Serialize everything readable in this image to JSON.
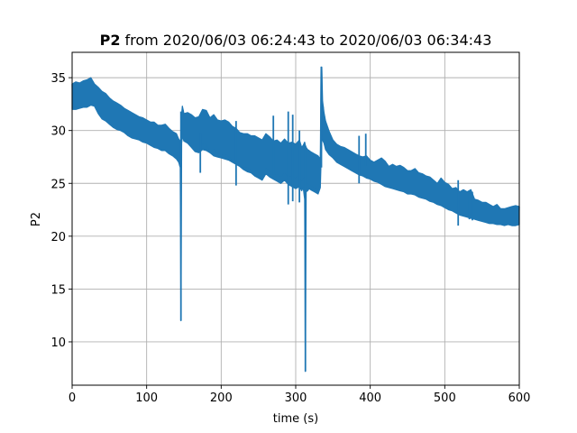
{
  "chart_data": {
    "type": "line",
    "title_bold": "P2",
    "title_rest": "from 2020/06/03 06:24:43 to 2020/06/03 06:34:43",
    "xlabel": "time (s)",
    "ylabel": "P2",
    "xlim": [
      0,
      600
    ],
    "ylim": [
      5.9,
      37.4
    ],
    "grid": true,
    "x_ticks": [
      "0",
      "100",
      "200",
      "300",
      "400",
      "500",
      "600"
    ],
    "y_ticks": [
      "10",
      "15",
      "20",
      "25",
      "30",
      "35"
    ],
    "series": [
      {
        "color": "#1f77b4",
        "x": [
          0,
          5,
          10,
          15,
          20,
          25,
          30,
          35,
          40,
          45,
          50,
          55,
          60,
          65,
          70,
          75,
          80,
          85,
          90,
          95,
          100,
          105,
          110,
          115,
          120,
          125,
          130,
          135,
          140,
          143,
          145,
          146,
          147,
          148,
          150,
          155,
          160,
          165,
          170,
          175,
          180,
          185,
          190,
          195,
          200,
          205,
          210,
          215,
          220,
          225,
          230,
          235,
          240,
          245,
          250,
          255,
          260,
          265,
          270,
          275,
          280,
          285,
          290,
          295,
          300,
          305,
          308,
          310,
          312,
          313,
          314,
          316,
          318,
          320,
          325,
          330,
          333,
          334,
          335,
          336,
          338,
          340,
          345,
          350,
          355,
          360,
          365,
          370,
          375,
          380,
          385,
          390,
          395,
          400,
          405,
          410,
          415,
          420,
          425,
          430,
          435,
          440,
          445,
          450,
          455,
          460,
          465,
          470,
          475,
          480,
          485,
          490,
          495,
          500,
          505,
          510,
          515,
          520,
          525,
          530,
          535,
          540,
          545,
          550,
          555,
          560,
          565,
          570,
          575,
          580,
          585,
          590,
          595,
          600
        ],
        "upper": [
          34.4,
          34.6,
          34.5,
          34.7,
          34.8,
          35.0,
          34.4,
          34.1,
          33.7,
          33.5,
          33.1,
          32.8,
          32.6,
          32.4,
          32.1,
          31.9,
          31.7,
          31.5,
          31.3,
          31.2,
          31.0,
          30.8,
          30.8,
          30.5,
          30.5,
          30.6,
          30.2,
          29.9,
          29.7,
          29.2,
          29.0,
          28.6,
          31.6,
          32.3,
          31.6,
          31.7,
          31.5,
          31.2,
          31.3,
          32.0,
          31.9,
          31.2,
          31.5,
          31.0,
          30.9,
          31.0,
          30.8,
          30.4,
          30.2,
          29.8,
          29.7,
          29.7,
          29.5,
          29.5,
          29.3,
          29.1,
          29.7,
          29.4,
          29.0,
          29.1,
          28.8,
          29.2,
          28.8,
          28.9,
          28.7,
          29.1,
          28.4,
          28.6,
          28.9,
          28.6,
          28.4,
          28.2,
          28.1,
          28.0,
          27.8,
          27.6,
          27.3,
          36.0,
          36.0,
          32.8,
          31.7,
          30.9,
          29.9,
          29.1,
          28.7,
          28.5,
          28.4,
          28.2,
          28.0,
          27.8,
          27.6,
          27.5,
          27.6,
          27.2,
          27.0,
          27.2,
          27.4,
          27.1,
          26.6,
          26.8,
          26.6,
          26.7,
          26.5,
          26.2,
          26.2,
          26.4,
          26.0,
          25.9,
          25.7,
          25.6,
          25.3,
          25.0,
          25.5,
          25.1,
          24.9,
          24.5,
          24.6,
          24.2,
          24.4,
          24.2,
          24.4,
          23.5,
          23.4,
          23.2,
          23.2,
          23.0,
          22.8,
          23.0,
          22.6,
          22.6,
          22.7,
          22.8,
          22.9,
          22.8
        ],
        "lower": [
          32.0,
          32.0,
          32.1,
          32.2,
          32.2,
          32.4,
          32.3,
          31.6,
          31.1,
          30.9,
          30.6,
          30.3,
          30.1,
          30.0,
          29.8,
          29.5,
          29.3,
          29.2,
          29.1,
          28.9,
          28.8,
          28.6,
          28.4,
          28.3,
          28.1,
          28.1,
          27.8,
          27.6,
          27.3,
          27.0,
          26.5,
          12.0,
          28.8,
          29.5,
          29.0,
          28.8,
          28.4,
          28.0,
          27.9,
          28.2,
          28.1,
          27.9,
          27.6,
          27.5,
          27.4,
          27.3,
          27.2,
          27.0,
          26.8,
          26.6,
          26.3,
          26.1,
          26.0,
          25.7,
          25.5,
          25.3,
          25.9,
          25.6,
          25.4,
          25.2,
          25.0,
          25.3,
          24.9,
          24.7,
          24.5,
          24.7,
          24.3,
          24.6,
          23.5,
          7.2,
          24.2,
          24.3,
          24.5,
          24.4,
          24.2,
          24.0,
          24.6,
          27.0,
          29.0,
          29.1,
          28.8,
          28.2,
          27.7,
          27.4,
          27.0,
          26.8,
          26.6,
          26.4,
          26.2,
          26.0,
          25.8,
          25.7,
          25.5,
          25.4,
          25.2,
          25.1,
          24.9,
          24.7,
          24.6,
          24.5,
          24.4,
          24.3,
          24.2,
          24.0,
          24.0,
          23.9,
          23.7,
          23.6,
          23.5,
          23.3,
          23.2,
          23.0,
          22.9,
          22.7,
          22.5,
          22.4,
          22.2,
          22.0,
          21.9,
          21.8,
          21.7,
          21.6,
          21.5,
          21.4,
          21.3,
          21.2,
          21.2,
          21.1,
          21.1,
          21.0,
          21.1,
          21.0,
          21.0,
          21.1
        ],
        "spikes": [
          {
            "x": 146,
            "y_min": 12.0,
            "y_max": 31.8
          },
          {
            "x": 313,
            "y_min": 7.2,
            "y_max": 28.5
          },
          {
            "x": 334.5,
            "y_min": 26.5,
            "y_max": 36.0
          },
          {
            "x": 290,
            "y_min": 23.0,
            "y_max": 31.8
          },
          {
            "x": 296,
            "y_min": 23.3,
            "y_max": 31.5
          },
          {
            "x": 270,
            "y_min": 25.8,
            "y_max": 31.4
          },
          {
            "x": 305,
            "y_min": 23.2,
            "y_max": 30.0
          },
          {
            "x": 385,
            "y_min": 25.0,
            "y_max": 29.5
          },
          {
            "x": 394,
            "y_min": 26.6,
            "y_max": 29.7
          },
          {
            "x": 172,
            "y_min": 26.0,
            "y_max": 29.8
          },
          {
            "x": 220,
            "y_min": 24.8,
            "y_max": 30.9
          },
          {
            "x": 518,
            "y_min": 21.0,
            "y_max": 25.3
          },
          {
            "x": 533,
            "y_min": 21.6,
            "y_max": 24.0
          },
          {
            "x": 537,
            "y_min": 21.5,
            "y_max": 24.2
          }
        ]
      }
    ]
  }
}
